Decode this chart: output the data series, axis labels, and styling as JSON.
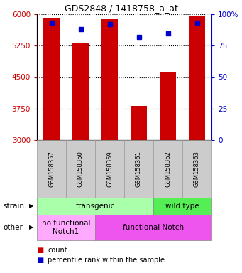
{
  "title": "GDS2848 / 1418758_a_at",
  "samples": [
    "GSM158357",
    "GSM158360",
    "GSM158359",
    "GSM158361",
    "GSM158362",
    "GSM158363"
  ],
  "counts": [
    5920,
    5310,
    5880,
    3820,
    4620,
    5960
  ],
  "percentiles": [
    93,
    88,
    92,
    82,
    85,
    93
  ],
  "ymin": 3000,
  "ymax": 6000,
  "yticks": [
    3000,
    3750,
    4500,
    5250,
    6000
  ],
  "pct_yticks": [
    0,
    25,
    50,
    75,
    100
  ],
  "bar_color": "#cc0000",
  "pct_color": "#0000cc",
  "strain_groups": [
    {
      "text": "transgenic",
      "cols": [
        0,
        1,
        2,
        3
      ],
      "color": "#aaffaa"
    },
    {
      "text": "wild type",
      "cols": [
        4,
        5
      ],
      "color": "#55ee55"
    }
  ],
  "other_groups": [
    {
      "text": "no functional\nNotch1",
      "cols": [
        0,
        1
      ],
      "color": "#ffaaff"
    },
    {
      "text": "functional Notch",
      "cols": [
        2,
        3,
        4,
        5
      ],
      "color": "#ee55ee"
    }
  ],
  "strain_row_label": "strain",
  "other_row_label": "other",
  "legend_count_label": "count",
  "legend_pct_label": "percentile rank within the sample",
  "bg_color": "#ffffff",
  "tick_color_left": "#cc0000",
  "tick_color_right": "#0000cc",
  "xlabel_bg": "#cccccc",
  "xlabel_edge": "#999999"
}
